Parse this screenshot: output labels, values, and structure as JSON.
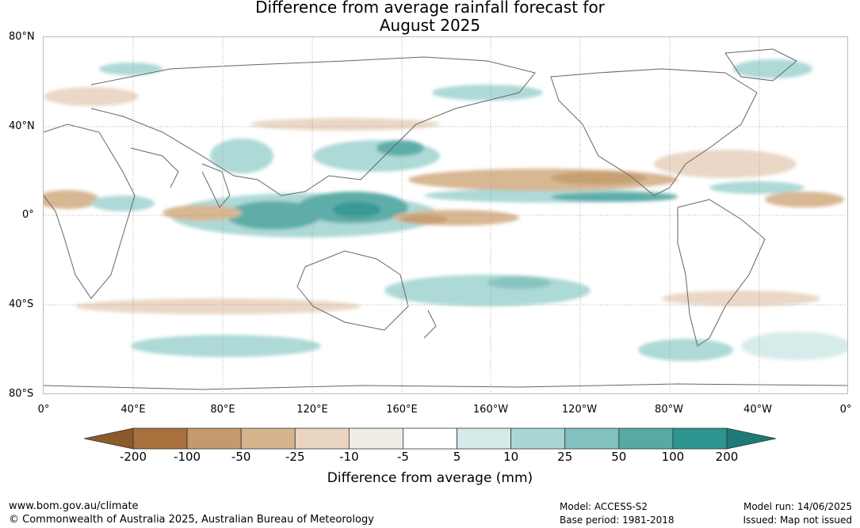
{
  "title": {
    "line1": "Difference from average rainfall forecast for",
    "line2": "August 2025"
  },
  "map": {
    "lat_labels": [
      "80°N",
      "40°N",
      "0°",
      "40°S",
      "80°S"
    ],
    "lon_labels": [
      "0°",
      "40°E",
      "80°E",
      "120°E",
      "160°E",
      "160°W",
      "120°W",
      "80°W",
      "40°W",
      "0°"
    ]
  },
  "legend": {
    "labels": [
      "-200",
      "-100",
      "-50",
      "-25",
      "-10",
      "-5",
      "5",
      "10",
      "25",
      "50",
      "100",
      "200"
    ],
    "colors": [
      "#8b5a2b",
      "#a8703c",
      "#c49a6c",
      "#d6b48e",
      "#e9d5c2",
      "#f2ece6",
      "#ffffff",
      "#d4ebe9",
      "#a9d7d4",
      "#82c1bd",
      "#57a9a5",
      "#2e9490",
      "#1f7a76"
    ],
    "unit_label": "Difference from average (mm)"
  },
  "footer": {
    "url": "www.bom.gov.au/climate",
    "copyright": "© Commonwealth of Australia 2025, Australian Bureau of Meteorology",
    "model": "Model: ACCESS-S2",
    "base_period": "Base period: 1981-2018",
    "model_run": "Model run: 14/06/2025",
    "issued": "Issued: Map not issued"
  }
}
